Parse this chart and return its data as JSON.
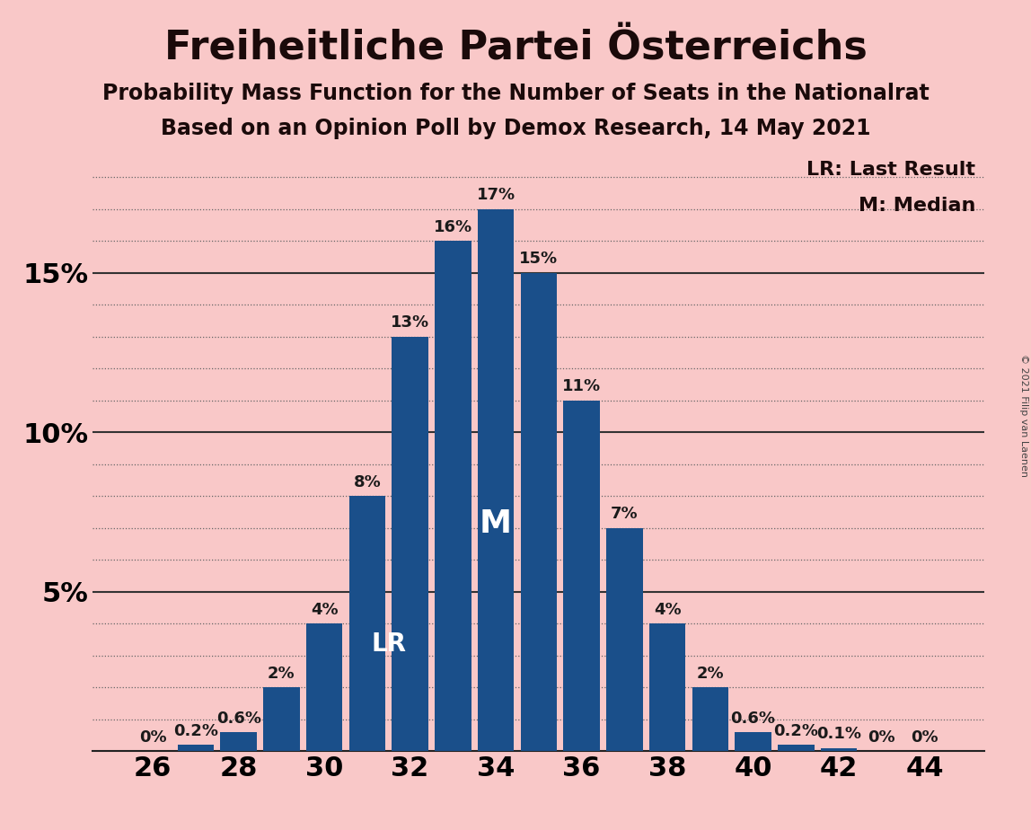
{
  "title": "Freiheitliche Partei Österreichs",
  "subtitle1": "Probability Mass Function for the Number of Seats in the Nationalrat",
  "subtitle2": "Based on an Opinion Poll by Demox Research, 14 May 2021",
  "copyright": "© 2021 Filip van Laenen",
  "legend_lr": "LR: Last Result",
  "legend_m": "M: Median",
  "background_color": "#f9c8c8",
  "bar_color": "#1a4f8a",
  "seats": [
    26,
    27,
    28,
    29,
    30,
    31,
    32,
    33,
    34,
    35,
    36,
    37,
    38,
    39,
    40,
    41,
    42,
    43,
    44
  ],
  "probabilities": [
    0.0,
    0.2,
    0.6,
    2.0,
    4.0,
    8.0,
    13.0,
    16.0,
    17.0,
    15.0,
    11.0,
    7.0,
    4.0,
    2.0,
    0.6,
    0.2,
    0.1,
    0.0,
    0.0
  ],
  "labels": [
    "0%",
    "0.2%",
    "0.6%",
    "2%",
    "4%",
    "8%",
    "13%",
    "16%",
    "17%",
    "15%",
    "11%",
    "7%",
    "4%",
    "2%",
    "0.6%",
    "0.2%",
    "0.1%",
    "0%",
    "0%"
  ],
  "lr_seat": 31,
  "median_seat": 34,
  "ylim": [
    0,
    19
  ],
  "yticks": [
    0,
    5,
    10,
    15
  ],
  "ytick_labels": [
    "",
    "5%",
    "10%",
    "15%"
  ],
  "xticks": [
    26,
    28,
    30,
    32,
    34,
    36,
    38,
    40,
    42,
    44
  ],
  "title_fontsize": 32,
  "subtitle_fontsize": 17,
  "axis_fontsize": 22,
  "label_fontsize": 13,
  "legend_fontsize": 16,
  "lr_label_fontsize": 20,
  "m_label_fontsize": 26
}
